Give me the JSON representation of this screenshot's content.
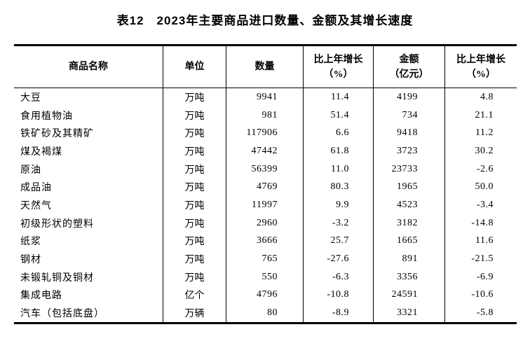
{
  "title": "表12　2023年主要商品进口数量、金额及其增长速度",
  "table": {
    "columns": [
      {
        "key": "commodity",
        "label": "商品名称",
        "sub": ""
      },
      {
        "key": "unit",
        "label": "单位",
        "sub": ""
      },
      {
        "key": "quantity",
        "label": "数量",
        "sub": ""
      },
      {
        "key": "quantity-growth",
        "label": "比上年增长",
        "sub": "（%）"
      },
      {
        "key": "value",
        "label": "金额",
        "sub": "（亿元）"
      },
      {
        "key": "value-growth",
        "label": "比上年增长",
        "sub": "（%）"
      }
    ],
    "rows": [
      {
        "commodity": "大豆",
        "unit": "万吨",
        "quantity": "9941",
        "quantity_growth": "11.4",
        "value": "4199",
        "value_growth": "4.8"
      },
      {
        "commodity": "食用植物油",
        "unit": "万吨",
        "quantity": "981",
        "quantity_growth": "51.4",
        "value": "734",
        "value_growth": "21.1"
      },
      {
        "commodity": "铁矿砂及其精矿",
        "unit": "万吨",
        "quantity": "117906",
        "quantity_growth": "6.6",
        "value": "9418",
        "value_growth": "11.2"
      },
      {
        "commodity": "煤及褐煤",
        "unit": "万吨",
        "quantity": "47442",
        "quantity_growth": "61.8",
        "value": "3723",
        "value_growth": "30.2"
      },
      {
        "commodity": "原油",
        "unit": "万吨",
        "quantity": "56399",
        "quantity_growth": "11.0",
        "value": "23733",
        "value_growth": "-2.6"
      },
      {
        "commodity": "成品油",
        "unit": "万吨",
        "quantity": "4769",
        "quantity_growth": "80.3",
        "value": "1965",
        "value_growth": "50.0"
      },
      {
        "commodity": "天然气",
        "unit": "万吨",
        "quantity": "11997",
        "quantity_growth": "9.9",
        "value": "4523",
        "value_growth": "-3.4"
      },
      {
        "commodity": "初级形状的塑料",
        "unit": "万吨",
        "quantity": "2960",
        "quantity_growth": "-3.2",
        "value": "3182",
        "value_growth": "-14.8"
      },
      {
        "commodity": "纸浆",
        "unit": "万吨",
        "quantity": "3666",
        "quantity_growth": "25.7",
        "value": "1665",
        "value_growth": "11.6"
      },
      {
        "commodity": "钢材",
        "unit": "万吨",
        "quantity": "765",
        "quantity_growth": "-27.6",
        "value": "891",
        "value_growth": "-21.5"
      },
      {
        "commodity": "未锻轧铜及铜材",
        "unit": "万吨",
        "quantity": "550",
        "quantity_growth": "-6.3",
        "value": "3356",
        "value_growth": "-6.9"
      },
      {
        "commodity": "集成电路",
        "unit": "亿个",
        "quantity": "4796",
        "quantity_growth": "-10.8",
        "value": "24591",
        "value_growth": "-10.6"
      },
      {
        "commodity": "汽车（包括底盘）",
        "unit": "万辆",
        "quantity": "80",
        "quantity_growth": "-8.9",
        "value": "3321",
        "value_growth": "-5.8"
      }
    ]
  },
  "colors": {
    "background": "#ffffff",
    "text": "#000000",
    "border": "#000000"
  }
}
